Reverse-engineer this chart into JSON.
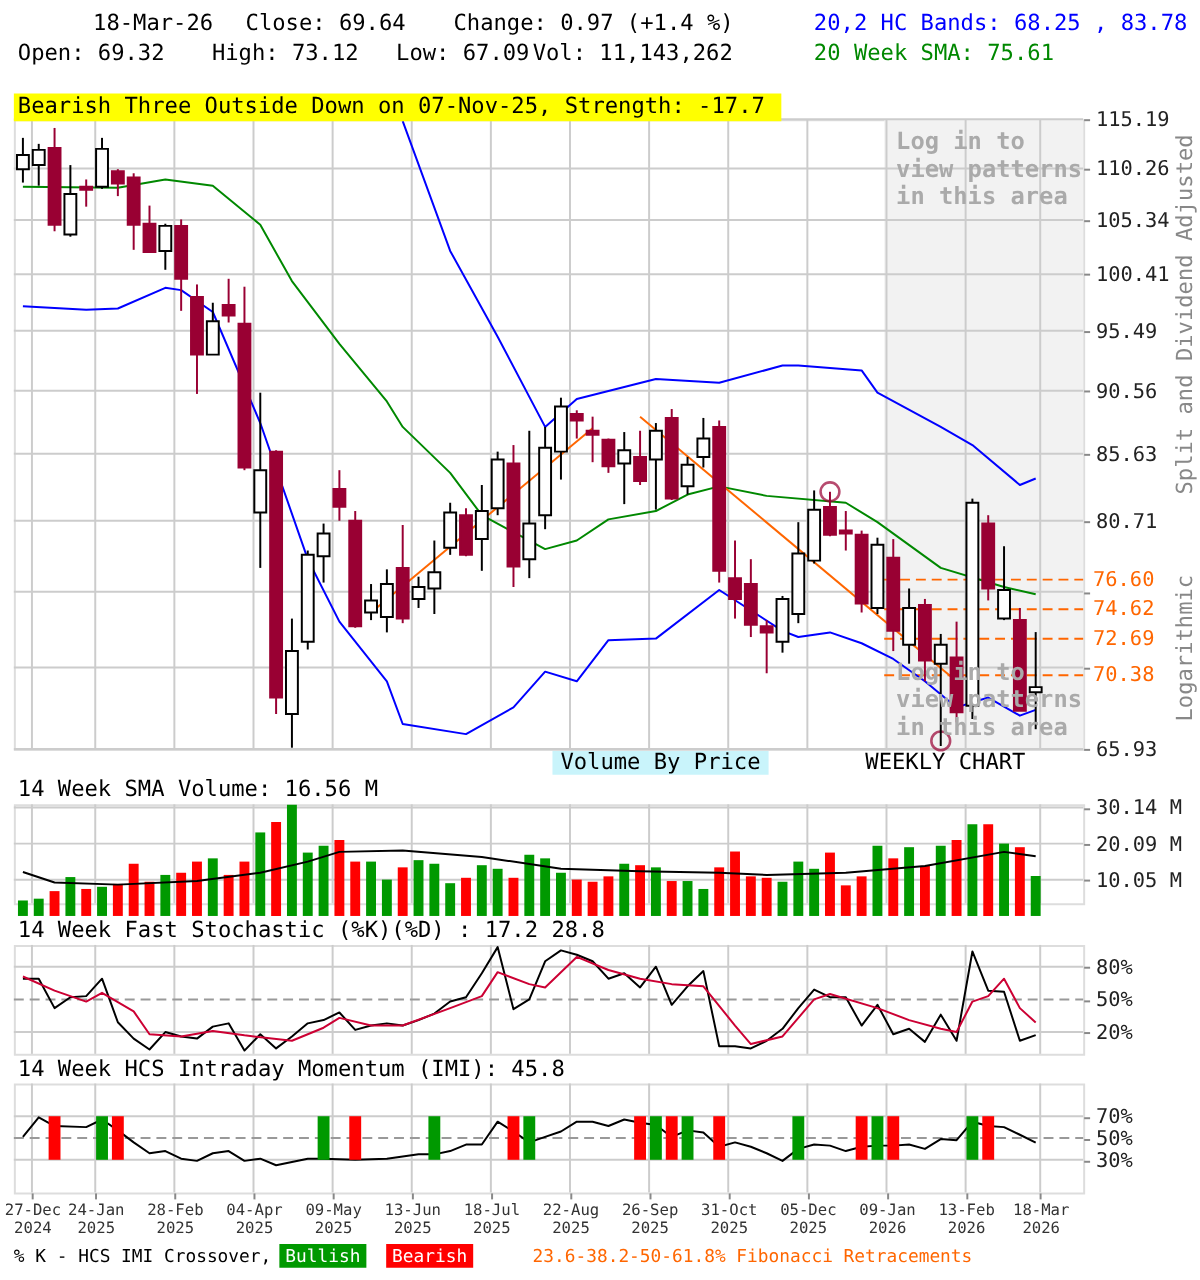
{
  "chart_data": [
    {
      "type": "candlestick",
      "x": [
        "2024-12-23",
        "2024-12-30",
        "2025-01-06",
        "2025-01-13",
        "2025-01-20",
        "2025-01-27",
        "2025-02-03",
        "2025-02-10",
        "2025-02-17",
        "2025-02-24",
        "2025-03-03",
        "2025-03-10",
        "2025-03-17",
        "2025-03-24",
        "2025-03-31",
        "2025-04-07",
        "2025-04-14",
        "2025-04-21",
        "2025-04-28",
        "2025-05-05",
        "2025-05-12",
        "2025-05-19",
        "2025-05-26",
        "2025-06-02",
        "2025-06-09",
        "2025-06-16",
        "2025-06-23",
        "2025-06-30",
        "2025-07-07",
        "2025-07-14",
        "2025-07-21",
        "2025-07-28",
        "2025-08-04",
        "2025-08-11",
        "2025-08-18",
        "2025-08-25",
        "2025-09-01",
        "2025-09-08",
        "2025-09-15",
        "2025-09-22",
        "2025-09-29",
        "2025-10-06",
        "2025-10-13",
        "2025-10-20",
        "2025-10-27",
        "2025-11-03",
        "2025-11-10",
        "2025-11-17",
        "2025-11-24",
        "2025-12-01",
        "2025-12-08",
        "2025-12-15",
        "2025-12-22",
        "2025-12-29",
        "2026-01-05",
        "2026-01-12",
        "2026-01-19",
        "2026-01-26",
        "2026-02-02",
        "2026-02-09",
        "2026-02-16",
        "2026-02-23",
        "2026-03-02",
        "2026-03-09",
        "2026-03-16"
      ],
      "ohlc": [
        [
          110.2,
          113.3,
          108.9,
          111.6
        ],
        [
          110.6,
          112.7,
          108.6,
          112.1
        ],
        [
          112.3,
          114.3,
          104.3,
          104.9
        ],
        [
          104.0,
          110.6,
          103.8,
          107.8
        ],
        [
          108.5,
          109.2,
          106.6,
          108.2
        ],
        [
          108.5,
          113.3,
          108.3,
          112.2
        ],
        [
          110.0,
          110.2,
          107.6,
          108.8
        ],
        [
          109.4,
          109.8,
          102.6,
          104.9
        ],
        [
          105.0,
          106.7,
          102.4,
          102.4
        ],
        [
          102.5,
          105.0,
          100.8,
          104.8
        ],
        [
          104.8,
          105.4,
          97.2,
          100.0
        ],
        [
          98.4,
          99.5,
          90.3,
          93.5
        ],
        [
          93.5,
          97.9,
          93.5,
          96.3
        ],
        [
          97.7,
          100.0,
          96.2,
          96.8
        ],
        [
          96.1,
          99.3,
          84.4,
          84.6
        ],
        [
          81.3,
          90.4,
          77.4,
          84.4
        ],
        [
          85.8,
          85.9,
          68.0,
          69.0
        ],
        [
          68.0,
          74.0,
          66.0,
          71.9
        ],
        [
          72.5,
          78.6,
          72.0,
          78.3
        ],
        [
          78.2,
          80.5,
          76.4,
          79.8
        ],
        [
          83.0,
          84.4,
          80.7,
          81.7
        ],
        [
          80.7,
          81.4,
          73.4,
          73.5
        ],
        [
          74.4,
          76.3,
          73.9,
          75.2
        ],
        [
          74.1,
          77.3,
          73.1,
          76.3
        ],
        [
          77.4,
          80.4,
          73.7,
          74.0
        ],
        [
          75.3,
          76.8,
          74.7,
          76.1
        ],
        [
          76.0,
          79.3,
          74.3,
          77.1
        ],
        [
          78.8,
          82.0,
          78.3,
          81.3
        ],
        [
          81.1,
          81.6,
          78.2,
          78.3
        ],
        [
          79.4,
          83.3,
          77.2,
          81.4
        ],
        [
          81.6,
          85.8,
          81.1,
          85.2
        ],
        [
          84.9,
          86.3,
          76.1,
          77.5
        ],
        [
          78.0,
          87.4,
          76.7,
          80.5
        ],
        [
          81.1,
          87.7,
          80.1,
          86.1
        ],
        [
          85.8,
          90.0,
          83.7,
          89.3
        ],
        [
          88.7,
          89.0,
          86.8,
          88.2
        ],
        [
          87.4,
          88.5,
          85.0,
          87.1
        ],
        [
          86.7,
          86.8,
          84.2,
          84.7
        ],
        [
          84.9,
          87.3,
          81.9,
          85.9
        ],
        [
          85.4,
          87.4,
          83.3,
          83.6
        ],
        [
          85.2,
          88.0,
          81.5,
          87.4
        ],
        [
          88.4,
          89.1,
          82.2,
          82.3
        ],
        [
          83.2,
          85.4,
          82.6,
          84.8
        ],
        [
          85.4,
          88.4,
          84.6,
          86.8
        ],
        [
          87.7,
          88.2,
          76.4,
          77.2
        ],
        [
          76.7,
          79.3,
          74.0,
          75.3
        ],
        [
          76.3,
          78.0,
          72.8,
          73.6
        ],
        [
          73.5,
          73.9,
          70.5,
          73.1
        ],
        [
          72.5,
          75.5,
          71.8,
          75.3
        ],
        [
          74.3,
          80.6,
          73.7,
          78.4
        ],
        [
          77.9,
          82.9,
          77.7,
          81.5
        ],
        [
          81.7,
          82.8,
          79.6,
          79.7
        ],
        [
          80.0,
          81.4,
          78.6,
          79.8
        ],
        [
          79.7,
          80.0,
          74.4,
          75.0
        ],
        [
          74.7,
          79.5,
          74.3,
          79.0
        ],
        [
          78.1,
          79.4,
          71.9,
          73.2
        ],
        [
          72.3,
          76.0,
          71.1,
          74.7
        ],
        [
          74.9,
          75.3,
          70.0,
          71.3
        ],
        [
          71.1,
          73.0,
          66.1,
          72.3
        ],
        [
          71.5,
          73.8,
          67.5,
          68.1
        ],
        [
          68.5,
          82.3,
          67.7,
          82.0
        ],
        [
          80.5,
          81.1,
          75.2,
          76.0
        ],
        [
          74.0,
          78.9,
          73.9,
          75.9
        ],
        [
          73.9,
          74.7,
          68.2,
          68.2
        ],
        [
          69.32,
          73.12,
          67.09,
          69.64
        ]
      ],
      "colors": [
        "#000000",
        "#000000",
        "#990033",
        "#000000",
        "#990033",
        "#000000",
        "#990033",
        "#990033",
        "#990033",
        "#000000",
        "#990033",
        "#990033",
        "#000000",
        "#990033",
        "#990033",
        "#000000",
        "#990033",
        "#000000",
        "#000000",
        "#000000",
        "#990033",
        "#990033",
        "#000000",
        "#000000",
        "#990033",
        "#000000",
        "#000000",
        "#000000",
        "#990033",
        "#000000",
        "#000000",
        "#990033",
        "#000000",
        "#000000",
        "#000000",
        "#990033",
        "#990033",
        "#990033",
        "#000000",
        "#990033",
        "#000000",
        "#990033",
        "#000000",
        "#000000",
        "#990033",
        "#990033",
        "#990033",
        "#990033",
        "#000000",
        "#000000",
        "#000000",
        "#990033",
        "#990033",
        "#990033",
        "#000000",
        "#990033",
        "#000000",
        "#990033",
        "#000000",
        "#990033",
        "#000000",
        "#990033",
        "#000000",
        "#990033",
        "#000000"
      ],
      "series": [
        {
          "name": "20,2 HC Bands: 68.25 , 83.78",
          "type": "line",
          "color": "#0000ff",
          "x": [
            "2025-06-09",
            "2025-06-30",
            "2025-07-21",
            "2025-08-11",
            "2025-08-25",
            "2025-09-29",
            "2025-10-27",
            "2025-11-24",
            "2025-12-01",
            "2025-12-29",
            "2026-01-05",
            "2026-02-02",
            "2026-02-16",
            "2026-03-09",
            "2026-03-16"
          ],
          "values": [
            115.0,
            102.5,
            95.0,
            87.7,
            89.9,
            91.5,
            91.2,
            92.6,
            92.6,
            92.2,
            90.4,
            87.7,
            86.3,
            83.3,
            83.78
          ]
        },
        {
          "type": "line",
          "color": "#0000ff",
          "x": [
            "2024-12-23",
            "2025-01-20",
            "2025-02-03",
            "2025-02-24",
            "2025-03-03",
            "2025-03-17",
            "2025-03-31",
            "2025-04-07",
            "2025-04-28",
            "2025-05-12",
            "2025-06-02",
            "2025-06-09",
            "2025-07-07",
            "2025-07-28",
            "2025-08-11",
            "2025-08-25",
            "2025-09-08",
            "2025-09-29",
            "2025-10-27",
            "2025-11-24",
            "2025-12-01",
            "2025-12-15",
            "2025-12-29",
            "2026-01-12",
            "2026-01-26",
            "2026-02-09",
            "2026-02-23",
            "2026-03-09",
            "2026-03-16"
          ],
          "values": [
            97.6,
            97.3,
            97.4,
            99.2,
            99.0,
            97.1,
            null,
            88.0,
            78.0,
            73.8,
            70.0,
            67.4,
            66.8,
            68.4,
            70.6,
            70.0,
            72.6,
            72.7,
            75.9,
            73.2,
            72.8,
            73.1,
            72.4,
            71.4,
            70.0,
            68.4,
            69.0,
            67.9,
            68.25
          ]
        },
        {
          "name": "20 Week SMA: 75.61",
          "type": "line",
          "color": "#008800",
          "x": [
            "2024-12-23",
            "2025-02-03",
            "2025-02-24",
            "2025-03-17",
            "2025-04-07",
            "2025-04-21",
            "2025-05-12",
            "2025-06-02",
            "2025-06-09",
            "2025-06-30",
            "2025-07-14",
            "2025-08-11",
            "2025-08-25",
            "2025-09-08",
            "2025-09-29",
            "2025-10-13",
            "2025-10-27",
            "2025-11-17",
            "2025-12-22",
            "2026-01-05",
            "2026-02-02",
            "2026-03-02",
            "2026-03-16"
          ],
          "values": [
            108.5,
            108.4,
            109.2,
            108.6,
            104.9,
            99.8,
            94.4,
            89.7,
            87.7,
            84.2,
            81.1,
            78.7,
            79.3,
            80.8,
            81.4,
            82.6,
            83.2,
            82.5,
            82.0,
            80.6,
            77.4,
            76.1,
            75.61
          ]
        },
        {
          "type": "line",
          "color": "#ff6600",
          "x": [
            "2025-05-26",
            "2025-09-01"
          ],
          "values": [
            74.4,
            87.6
          ]
        },
        {
          "type": "line",
          "color": "#ff6600",
          "x": [
            "2025-09-22",
            "2026-02-09"
          ],
          "values": [
            88.5,
            70.0
          ]
        },
        {
          "type": "scatter",
          "marker": "circle",
          "color": "#990033",
          "x": [
            "2025-12-15",
            "2026-02-02"
          ],
          "values": [
            82.8,
            66.4
          ]
        }
      ],
      "xlim": [
        "2024-12-19",
        "2026-04-06"
      ],
      "xticks": [
        {
          "value": "2024-12-27",
          "label": null
        },
        {
          "value": "2025-01-24",
          "label": null
        },
        {
          "value": "2025-02-28",
          "label": null
        },
        {
          "value": "2025-04-04",
          "label": null
        },
        {
          "value": "2025-05-09",
          "label": null
        },
        {
          "value": "2025-06-13",
          "label": null
        },
        {
          "value": "2025-07-18",
          "label": null
        },
        {
          "value": "2025-08-22",
          "label": null
        },
        {
          "value": "2025-09-26",
          "label": null
        },
        {
          "value": "2025-10-31",
          "label": null
        },
        {
          "value": "2025-12-05",
          "label": null
        },
        {
          "value": "2026-01-09",
          "label": null
        },
        {
          "value": "2026-02-13",
          "label": null
        },
        {
          "value": "2026-03-18",
          "label": null
        }
      ],
      "ylim": [
        65.93,
        115.19
      ],
      "yticks": [
        115.19,
        110.26,
        105.34,
        100.41,
        95.49,
        90.56,
        85.63,
        80.71,
        {
          "value": 75.78,
          "label": null
        },
        {
          "value": 70.86,
          "label": null
        },
        65.93
      ],
      "log": true,
      "grid": true,
      "tick_labels": "y",
      "ylabel": "Split and Dividend Adjusted",
      "ref_lines": [
        {
          "axis": "y",
          "value": 76.6,
          "label": "76.60",
          "color": "#ff6600",
          "line_style": "dashed"
        },
        {
          "axis": "y",
          "value": 74.62,
          "label": "74.62",
          "color": "#ff6600",
          "line_style": "dashed"
        },
        {
          "axis": "y",
          "value": 72.69,
          "label": "72.69",
          "color": "#ff6600",
          "line_style": "dashed"
        },
        {
          "axis": "y",
          "value": 70.38,
          "label": "70.38",
          "color": "#ff6600",
          "line_style": "dashed"
        }
      ],
      "bands": [
        {
          "axis": "x",
          "from": "2026-01-08",
          "to": "2026-04-06",
          "label": "Log in to view patterns in this area",
          "color": "#f2f2f2"
        }
      ],
      "annotations": [
        "18-Mar-26",
        "Close: 69.64",
        "Change: 0.97 (+1.4 %)",
        "Open: 69.32",
        "High: 73.12",
        "Low: 67.09",
        "Vol: 11,143,262",
        "Bearish Three Outside Down on 07-Nov-25, Strength: -17.7",
        "Log in to view patterns in this area",
        "Logarithmic",
        "WEEKLY CHART",
        "Volume By Price"
      ]
    },
    {
      "type": "bar",
      "title": "14 Week SMA Volume: 16.56 M",
      "x": [
        "2024-12-23",
        "2024-12-30",
        "2025-01-06",
        "2025-01-13",
        "2025-01-20",
        "2025-01-27",
        "2025-02-03",
        "2025-02-10",
        "2025-02-17",
        "2025-02-24",
        "2025-03-03",
        "2025-03-10",
        "2025-03-17",
        "2025-03-24",
        "2025-03-31",
        "2025-04-07",
        "2025-04-14",
        "2025-04-21",
        "2025-04-28",
        "2025-05-05",
        "2025-05-12",
        "2025-05-19",
        "2025-05-26",
        "2025-06-02",
        "2025-06-09",
        "2025-06-16",
        "2025-06-23",
        "2025-06-30",
        "2025-07-07",
        "2025-07-14",
        "2025-07-21",
        "2025-07-28",
        "2025-08-04",
        "2025-08-11",
        "2025-08-18",
        "2025-08-25",
        "2025-09-01",
        "2025-09-08",
        "2025-09-15",
        "2025-09-22",
        "2025-09-29",
        "2025-10-06",
        "2025-10-13",
        "2025-10-20",
        "2025-10-27",
        "2025-11-03",
        "2025-11-10",
        "2025-11-17",
        "2025-11-24",
        "2025-12-01",
        "2025-12-08",
        "2025-12-15",
        "2025-12-22",
        "2025-12-29",
        "2026-01-05",
        "2026-01-12",
        "2026-01-19",
        "2026-01-26",
        "2026-02-02",
        "2026-02-09",
        "2026-02-16",
        "2026-02-23",
        "2026-03-02",
        "2026-03-09",
        "2026-03-16"
      ],
      "series": [
        {
          "type": "bar",
          "values": [
            4.3,
            4.8,
            6.9,
            10.8,
            7.5,
            8.1,
            8.9,
            14.5,
            9.5,
            11.4,
            12.0,
            15.1,
            16.0,
            11.4,
            15.1,
            23.2,
            26.1,
            30.9,
            17.6,
            19.5,
            21.1,
            15.1,
            15.1,
            10.1,
            13.5,
            15.5,
            14.5,
            9.1,
            10.6,
            14.1,
            13.1,
            10.6,
            17.0,
            16.0,
            12.0,
            10.1,
            9.5,
            11.0,
            14.5,
            14.1,
            13.5,
            9.7,
            9.7,
            7.5,
            13.5,
            17.9,
            11.0,
            10.6,
            9.5,
            15.1,
            13.1,
            17.6,
            8.5,
            11.0,
            19.5,
            16.0,
            19.1,
            13.9,
            19.5,
            21.1,
            25.5,
            25.5,
            20.1,
            19.1,
            11.1
          ],
          "colors": [
            "#009900",
            "#009900",
            "#ff0000",
            "#009900",
            "#ff0000",
            "#009900",
            "#ff0000",
            "#ff0000",
            "#ff0000",
            "#009900",
            "#ff0000",
            "#ff0000",
            "#009900",
            "#ff0000",
            "#ff0000",
            "#009900",
            "#ff0000",
            "#009900",
            "#009900",
            "#009900",
            "#ff0000",
            "#ff0000",
            "#009900",
            "#009900",
            "#ff0000",
            "#009900",
            "#009900",
            "#009900",
            "#ff0000",
            "#009900",
            "#009900",
            "#ff0000",
            "#009900",
            "#009900",
            "#009900",
            "#ff0000",
            "#ff0000",
            "#ff0000",
            "#009900",
            "#ff0000",
            "#009900",
            "#ff0000",
            "#009900",
            "#009900",
            "#ff0000",
            "#ff0000",
            "#ff0000",
            "#ff0000",
            "#009900",
            "#009900",
            "#009900",
            "#ff0000",
            "#ff0000",
            "#ff0000",
            "#009900",
            "#ff0000",
            "#009900",
            "#ff0000",
            "#009900",
            "#ff0000",
            "#009900",
            "#ff0000",
            "#009900",
            "#ff0000",
            "#009900"
          ]
        },
        {
          "type": "line",
          "color": "#000000",
          "x": [
            "2024-12-23",
            "2025-01-06",
            "2025-02-03",
            "2025-03-10",
            "2025-04-07",
            "2025-04-28",
            "2025-05-12",
            "2025-06-09",
            "2025-07-14",
            "2025-08-18",
            "2025-09-22",
            "2025-10-27",
            "2025-11-17",
            "2025-12-22",
            "2026-01-26",
            "2026-03-02",
            "2026-03-16"
          ],
          "values": [
            12.2,
            9.3,
            8.7,
            9.7,
            12.0,
            15.1,
            17.8,
            18.2,
            16.4,
            13.1,
            12.4,
            12.0,
            11.4,
            12.0,
            13.9,
            17.8,
            16.56
          ]
        }
      ],
      "xlim": [
        "2024-12-19",
        "2026-04-06"
      ],
      "xticks": [
        {
          "value": "2024-12-27",
          "label": null
        },
        {
          "value": "2025-01-24",
          "label": null
        },
        {
          "value": "2025-02-28",
          "label": null
        },
        {
          "value": "2025-04-04",
          "label": null
        },
        {
          "value": "2025-05-09",
          "label": null
        },
        {
          "value": "2025-06-13",
          "label": null
        },
        {
          "value": "2025-07-18",
          "label": null
        },
        {
          "value": "2025-08-22",
          "label": null
        },
        {
          "value": "2025-09-26",
          "label": null
        },
        {
          "value": "2025-10-31",
          "label": null
        },
        {
          "value": "2025-12-05",
          "label": null
        },
        {
          "value": "2026-01-09",
          "label": null
        },
        {
          "value": "2026-02-13",
          "label": null
        },
        {
          "value": "2026-03-18",
          "label": null
        }
      ],
      "ylim": [
        3.5,
        31.0
      ],
      "yticks": [
        {
          "value": 10.05,
          "label": "10.05 M"
        },
        {
          "value": 20.09,
          "label": "20.09 M"
        },
        {
          "value": 30.14,
          "label": "30.14 M"
        }
      ],
      "grid": true,
      "tick_labels": "y"
    },
    {
      "type": "line",
      "title": "14 Week Fast Stochastic (%K)(%D) : 17.2 28.8",
      "x": [
        "2024-12-23",
        "2024-12-30",
        "2025-01-06",
        "2025-01-13",
        "2025-01-20",
        "2025-01-27",
        "2025-02-03",
        "2025-02-10",
        "2025-02-17",
        "2025-02-24",
        "2025-03-03",
        "2025-03-10",
        "2025-03-17",
        "2025-03-24",
        "2025-03-31",
        "2025-04-07",
        "2025-04-14",
        "2025-04-21",
        "2025-04-28",
        "2025-05-05",
        "2025-05-12",
        "2025-05-19",
        "2025-05-26",
        "2025-06-02",
        "2025-06-09",
        "2025-06-16",
        "2025-06-23",
        "2025-06-30",
        "2025-07-07",
        "2025-07-14",
        "2025-07-21",
        "2025-07-28",
        "2025-08-04",
        "2025-08-11",
        "2025-08-18",
        "2025-08-25",
        "2025-09-01",
        "2025-09-08",
        "2025-09-15",
        "2025-09-22",
        "2025-09-29",
        "2025-10-06",
        "2025-10-13",
        "2025-10-20",
        "2025-10-27",
        "2025-11-03",
        "2025-11-10",
        "2025-11-17",
        "2025-11-24",
        "2025-12-01",
        "2025-12-08",
        "2025-12-15",
        "2025-12-22",
        "2025-12-29",
        "2026-01-05",
        "2026-01-12",
        "2026-01-19",
        "2026-01-26",
        "2026-02-02",
        "2026-02-09",
        "2026-02-16",
        "2026-02-23",
        "2026-03-02",
        "2026-03-09",
        "2026-03-16"
      ],
      "series": [
        {
          "color": "#000000",
          "values": [
            69,
            69,
            42,
            52,
            53,
            69,
            29,
            14,
            4,
            20,
            16,
            14,
            25,
            28,
            3,
            18,
            5,
            16,
            28,
            31,
            38,
            22,
            26,
            28,
            26,
            31,
            37,
            48,
            52,
            74,
            98,
            41,
            50,
            85,
            95,
            91,
            85,
            69,
            74,
            61,
            80,
            45,
            62,
            76,
            7,
            7,
            5,
            12,
            23,
            42,
            59,
            52,
            52,
            26,
            45,
            18,
            23,
            11,
            36,
            12,
            94,
            58,
            57,
            12,
            17.2
          ]
        },
        {
          "color": "#cc0033",
          "x": [
            "2024-12-23",
            "2025-01-06",
            "2025-01-20",
            "2025-01-27",
            "2025-02-10",
            "2025-02-17",
            "2025-03-03",
            "2025-03-17",
            "2025-03-31",
            "2025-04-21",
            "2025-05-05",
            "2025-05-12",
            "2025-05-26",
            "2025-06-09",
            "2025-06-30",
            "2025-07-14",
            "2025-07-21",
            "2025-08-04",
            "2025-08-11",
            "2025-08-25",
            "2025-09-08",
            "2025-09-22",
            "2025-10-06",
            "2025-10-20",
            "2025-11-03",
            "2025-11-10",
            "2025-11-24",
            "2025-12-08",
            "2025-12-15",
            "2026-01-05",
            "2026-01-19",
            "2026-02-02",
            "2026-02-09",
            "2026-02-16",
            "2026-02-23",
            "2026-03-02",
            "2026-03-09",
            "2026-03-16"
          ],
          "values": [
            71,
            58,
            48,
            56,
            39,
            18,
            16,
            21,
            17,
            12,
            24,
            33,
            26,
            26,
            42,
            53,
            75,
            64,
            61,
            89,
            77,
            69,
            64,
            62,
            26,
            9,
            16,
            50,
            55,
            42,
            31,
            23,
            20,
            48,
            53,
            69,
            42,
            28.8
          ]
        }
      ],
      "xlim": [
        "2024-12-19",
        "2026-04-06"
      ],
      "xticks": [
        {
          "value": "2024-12-27",
          "label": null
        },
        {
          "value": "2025-01-24",
          "label": null
        },
        {
          "value": "2025-02-28",
          "label": null
        },
        {
          "value": "2025-04-04",
          "label": null
        },
        {
          "value": "2025-05-09",
          "label": null
        },
        {
          "value": "2025-06-13",
          "label": null
        },
        {
          "value": "2025-07-18",
          "label": null
        },
        {
          "value": "2025-08-22",
          "label": null
        },
        {
          "value": "2025-09-26",
          "label": null
        },
        {
          "value": "2025-10-31",
          "label": null
        },
        {
          "value": "2025-12-05",
          "label": null
        },
        {
          "value": "2026-01-09",
          "label": null
        },
        {
          "value": "2026-02-13",
          "label": null
        },
        {
          "value": "2026-03-18",
          "label": null
        }
      ],
      "ylim": [
        0,
        100
      ],
      "yticks": [
        {
          "value": 20,
          "label": "20%"
        },
        {
          "value": 50,
          "label": "50%"
        },
        {
          "value": 80,
          "label": "80%"
        }
      ],
      "ref_lines": [
        {
          "axis": "y",
          "value": 50,
          "color": "#999999",
          "line_style": "dashed"
        }
      ],
      "grid": true,
      "tick_labels": "y"
    },
    {
      "type": "line",
      "title": "14 Week HCS Intraday Momentum (IMI): 45.8",
      "series": [
        {
          "color": "#000000",
          "x": [
            "2024-12-23",
            "2024-12-30",
            "2025-01-06",
            "2025-01-20",
            "2025-01-27",
            "2025-02-03",
            "2025-02-10",
            "2025-02-17",
            "2025-02-24",
            "2025-03-03",
            "2025-03-10",
            "2025-03-17",
            "2025-03-24",
            "2025-03-31",
            "2025-04-07",
            "2025-04-14",
            "2025-04-21",
            "2025-04-28",
            "2025-05-05",
            "2025-05-19",
            "2025-06-02",
            "2025-06-16",
            "2025-06-23",
            "2025-06-30",
            "2025-07-07",
            "2025-07-14",
            "2025-07-21",
            "2025-07-28",
            "2025-08-04",
            "2025-08-11",
            "2025-08-18",
            "2025-08-25",
            "2025-09-01",
            "2025-09-08",
            "2025-09-15",
            "2025-09-22",
            "2025-09-29",
            "2025-10-06",
            "2025-10-13",
            "2025-10-20",
            "2025-10-27",
            "2025-11-03",
            "2025-11-10",
            "2025-11-17",
            "2025-11-24",
            "2025-12-01",
            "2025-12-08",
            "2025-12-15",
            "2025-12-22",
            "2025-12-29",
            "2026-01-05",
            "2026-01-12",
            "2026-01-19",
            "2026-01-26",
            "2026-02-02",
            "2026-02-09",
            "2026-02-16",
            "2026-02-23",
            "2026-03-02",
            "2026-03-09",
            "2026-03-16"
          ],
          "values": [
            51,
            69,
            61,
            60,
            67,
            57,
            46,
            36,
            38,
            31,
            29,
            36,
            38,
            29,
            31,
            25,
            28,
            31,
            31,
            30,
            31,
            35,
            35,
            38,
            44,
            44,
            65,
            56,
            46,
            51,
            56,
            65,
            65,
            61,
            67,
            64,
            62,
            51,
            57,
            55,
            42,
            46,
            42,
            36,
            29,
            40,
            44,
            43,
            38,
            42,
            43,
            43,
            44,
            40,
            49,
            48,
            65,
            61,
            60,
            53,
            45.8
          ]
        },
        {
          "name": "Bullish",
          "type": "bar",
          "color": "#009900",
          "x": [
            "2025-01-27",
            "2025-05-05",
            "2025-06-23",
            "2025-08-04",
            "2025-09-29",
            "2025-10-13",
            "2025-12-01",
            "2026-01-05",
            "2026-02-16"
          ],
          "base": [
            30,
            30,
            30,
            30,
            30,
            30,
            30,
            30,
            30
          ],
          "values": [
            40,
            40,
            40,
            40,
            40,
            40,
            40,
            40,
            40
          ]
        },
        {
          "name": "Bearish",
          "type": "bar",
          "color": "#ff0000",
          "x": [
            "2025-01-06",
            "2025-02-03",
            "2025-05-19",
            "2025-07-28",
            "2025-09-22",
            "2025-10-06",
            "2025-10-27",
            "2025-12-29",
            "2026-01-12",
            "2026-02-23"
          ],
          "base": [
            30,
            30,
            30,
            30,
            30,
            30,
            30,
            30,
            30,
            30
          ],
          "values": [
            40,
            40,
            40,
            40,
            40,
            40,
            40,
            40,
            40,
            40
          ]
        }
      ],
      "xlim": [
        "2024-12-19",
        "2026-04-06"
      ],
      "xticks": [
        {
          "value": "2024-12-27",
          "label": "27-Dec\n2024"
        },
        {
          "value": "2025-01-24",
          "label": "24-Jan\n2025"
        },
        {
          "value": "2025-02-28",
          "label": "28-Feb\n2025"
        },
        {
          "value": "2025-04-04",
          "label": "04-Apr\n2025"
        },
        {
          "value": "2025-05-09",
          "label": "09-May\n2025"
        },
        {
          "value": "2025-06-13",
          "label": "13-Jun\n2025"
        },
        {
          "value": "2025-07-18",
          "label": "18-Jul\n2025"
        },
        {
          "value": "2025-08-22",
          "label": "22-Aug\n2025"
        },
        {
          "value": "2025-09-26",
          "label": "26-Sep\n2025"
        },
        {
          "value": "2025-10-31",
          "label": "31-Oct\n2025"
        },
        {
          "value": "2025-12-05",
          "label": "05-Dec\n2025"
        },
        {
          "value": "2026-01-09",
          "label": "09-Jan\n2026"
        },
        {
          "value": "2026-02-13",
          "label": "13-Feb\n2026"
        },
        {
          "value": "2026-03-18",
          "label": "18-Mar\n2026"
        }
      ],
      "ylim": [
        0,
        100
      ],
      "yticks": [
        {
          "value": 30,
          "label": "30%"
        },
        {
          "value": 50,
          "label": "50%"
        },
        {
          "value": 70,
          "label": "70%"
        }
      ],
      "ref_lines": [
        {
          "axis": "y",
          "value": 50,
          "color": "#999999",
          "line_style": "dashed"
        }
      ],
      "grid": true,
      "legend": "bottom",
      "legend_title": "% K - HCS IMI Crossover,",
      "annotations": [
        "23.6-38.2-50-61.8% Fibonacci Retracements"
      ]
    }
  ]
}
